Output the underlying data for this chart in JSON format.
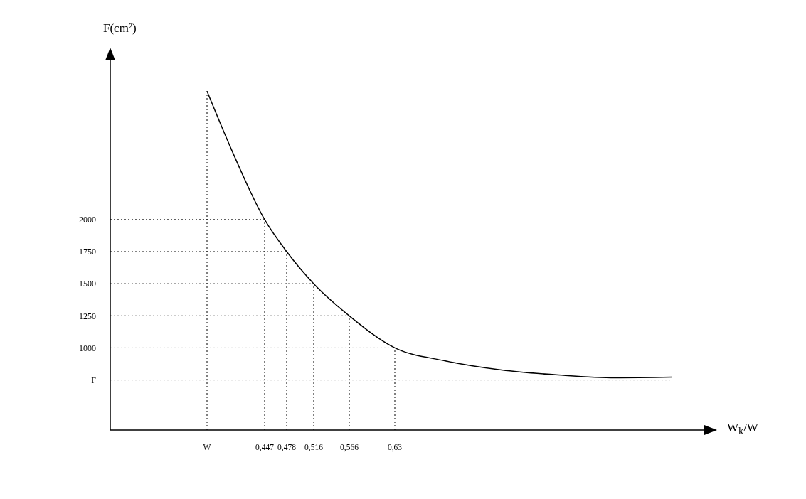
{
  "chart_data": {
    "type": "line",
    "ylabel": "F(cm²)",
    "xlabel": "W$_{k}$/W",
    "x": [
      0.366,
      0.4,
      0.447,
      0.478,
      0.516,
      0.566,
      0.63,
      0.7,
      0.78,
      0.86,
      0.94,
      1.02
    ],
    "series": [
      {
        "color": "#000000",
        "values": [
          3000,
          2550,
          2000,
          1750,
          1500,
          1250,
          1000,
          900,
          828,
          789,
          767,
          772
        ]
      }
    ],
    "xlim": [
      0.23,
      1.065
    ],
    "ylim": [
      360,
      3240
    ],
    "xticks": [
      {
        "value": 0.366,
        "label": "W"
      },
      {
        "value": 0.447,
        "label": "0,447"
      },
      {
        "value": 0.478,
        "label": "0,478"
      },
      {
        "value": 0.516,
        "label": "0,516"
      },
      {
        "value": 0.566,
        "label": "0,566"
      },
      {
        "value": 0.63,
        "label": "0,63"
      }
    ],
    "yticks": [
      {
        "value": 750,
        "label": "F"
      },
      1000,
      1250,
      1500,
      1750,
      2000
    ],
    "ref_lines": [
      {
        "axis": "x",
        "value": 0.366,
        "line_style": "dotted",
        "color": "#000000"
      },
      {
        "axis": "x",
        "value": 0.447,
        "line_style": "dotted",
        "color": "#000000"
      },
      {
        "axis": "x",
        "value": 0.478,
        "line_style": "dotted",
        "color": "#000000"
      },
      {
        "axis": "x",
        "value": 0.516,
        "line_style": "dotted",
        "color": "#000000"
      },
      {
        "axis": "x",
        "value": 0.566,
        "line_style": "dotted",
        "color": "#000000"
      },
      {
        "axis": "x",
        "value": 0.63,
        "line_style": "dotted",
        "color": "#000000"
      },
      {
        "axis": "y",
        "value": 750,
        "line_style": "dotted",
        "color": "#000000"
      },
      {
        "axis": "y",
        "value": 1000,
        "line_style": "dotted",
        "color": "#000000"
      },
      {
        "axis": "y",
        "value": 1250,
        "line_style": "dotted",
        "color": "#000000"
      },
      {
        "axis": "y",
        "value": 1500,
        "line_style": "dotted",
        "color": "#000000"
      },
      {
        "axis": "y",
        "value": 1750,
        "line_style": "dotted",
        "color": "#000000"
      },
      {
        "axis": "y",
        "value": 2000,
        "line_style": "dotted",
        "color": "#000000"
      }
    ],
    "marker": "none",
    "line_style": "solid"
  }
}
